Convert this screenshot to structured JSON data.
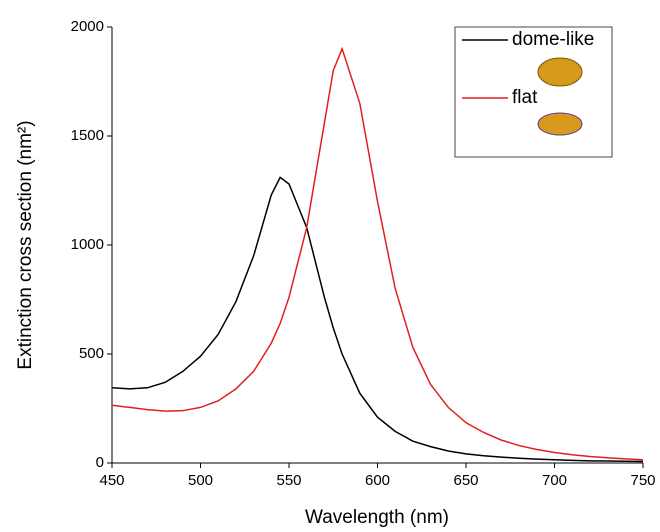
{
  "chart_data": {
    "type": "line",
    "x_label": "Wavelength (nm)",
    "y_label": "Extinction cross section (nm²)",
    "x": [
      450,
      460,
      470,
      480,
      490,
      500,
      510,
      520,
      530,
      540,
      545,
      550,
      560,
      570,
      575,
      580,
      590,
      600,
      610,
      620,
      630,
      640,
      650,
      660,
      670,
      680,
      690,
      700,
      710,
      720,
      730,
      740,
      750
    ],
    "series": [
      {
        "name": "dome-like",
        "color": "#000000",
        "values": [
          345,
          340,
          345,
          370,
          420,
          490,
          590,
          740,
          950,
          1230,
          1310,
          1280,
          1080,
          760,
          620,
          500,
          320,
          210,
          145,
          100,
          75,
          55,
          42,
          33,
          27,
          22,
          18,
          15,
          12,
          10,
          9,
          8,
          7
        ]
      },
      {
        "name": "flat",
        "color": "#e02020",
        "values": [
          265,
          255,
          245,
          238,
          240,
          255,
          285,
          340,
          420,
          550,
          640,
          760,
          1080,
          1560,
          1800,
          1900,
          1650,
          1200,
          800,
          530,
          360,
          255,
          185,
          140,
          105,
          80,
          62,
          48,
          38,
          30,
          24,
          19,
          15
        ]
      }
    ],
    "xlim": [
      450,
      750
    ],
    "ylim": [
      0,
      2000
    ],
    "xticks": [
      450,
      500,
      550,
      600,
      650,
      700,
      750
    ],
    "yticks": [
      0,
      500,
      1000,
      1500,
      2000
    ],
    "legend": "top-right"
  }
}
